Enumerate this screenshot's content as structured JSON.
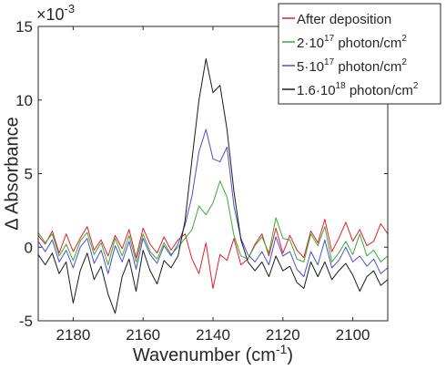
{
  "chart_data": {
    "type": "line",
    "title": "",
    "xlabel_main": "Wavenumber (cm",
    "xlabel_sup": "-1",
    "xlabel_end": ")",
    "ylabel": "Δ Absorbance",
    "exponent_base": "×10",
    "exponent_power": "-3",
    "xlim": [
      2190,
      2090
    ],
    "x_reversed": true,
    "ylim": [
      -5,
      15
    ],
    "xticks": [
      2180,
      2160,
      2140,
      2120,
      2100
    ],
    "yticks": [
      -5,
      0,
      5,
      10,
      15
    ],
    "grid": false,
    "legend_position": "top-right",
    "series": [
      {
        "name": "After deposition",
        "legend_pre": "After deposition",
        "legend_sup": "",
        "legend_post": "",
        "color": "#e0202b",
        "points": [
          [
            2190,
            0.8
          ],
          [
            2188,
            0.2
          ],
          [
            2186,
            1.1
          ],
          [
            2184,
            -0.4
          ],
          [
            2182,
            0.9
          ],
          [
            2180,
            -0.3
          ],
          [
            2178,
            0.6
          ],
          [
            2176,
            1.4
          ],
          [
            2174,
            -0.2
          ],
          [
            2172,
            0.5
          ],
          [
            2170,
            -0.6
          ],
          [
            2168,
            0.8
          ],
          [
            2166,
            -0.1
          ],
          [
            2164,
            1.2
          ],
          [
            2162,
            -0.7
          ],
          [
            2160,
            1.3
          ],
          [
            2158,
            0.2
          ],
          [
            2156,
            -0.4
          ],
          [
            2154,
            0.7
          ],
          [
            2152,
            -0.2
          ],
          [
            2150,
            0.5
          ],
          [
            2148,
            0.9
          ],
          [
            2146,
            -0.8
          ],
          [
            2144,
            -1.8
          ],
          [
            2142,
            0.3
          ],
          [
            2140,
            -2.8
          ],
          [
            2138,
            -0.5
          ],
          [
            2136,
            -0.9
          ],
          [
            2134,
            0.6
          ],
          [
            2132,
            -1.2
          ],
          [
            2130,
            -0.8
          ],
          [
            2128,
            0.2
          ],
          [
            2126,
            0.9
          ],
          [
            2124,
            -0.6
          ],
          [
            2122,
            1.3
          ],
          [
            2120,
            -0.4
          ],
          [
            2118,
            0.8
          ],
          [
            2116,
            -0.2
          ],
          [
            2114,
            -0.7
          ],
          [
            2112,
            1.1
          ],
          [
            2110,
            0.3
          ],
          [
            2108,
            1.9
          ],
          [
            2106,
            -0.3
          ],
          [
            2104,
            0.6
          ],
          [
            2102,
            1.7
          ],
          [
            2100,
            0.4
          ],
          [
            2098,
            1.2
          ],
          [
            2096,
            0.1
          ],
          [
            2094,
            0.4
          ],
          [
            2092,
            1.6
          ],
          [
            2090,
            0.9
          ]
        ]
      },
      {
        "name": "2·10^17 photon/cm^2",
        "legend_pre": "2·10",
        "legend_sup": "17",
        "legend_post": " photon/cm",
        "legend_sup2": "2",
        "color": "#3aaa35",
        "points": [
          [
            2190,
            1.0
          ],
          [
            2188,
            0.3
          ],
          [
            2186,
            0.9
          ],
          [
            2184,
            -0.6
          ],
          [
            2182,
            0.2
          ],
          [
            2180,
            -0.9
          ],
          [
            2178,
            0.4
          ],
          [
            2176,
            1.0
          ],
          [
            2174,
            -0.5
          ],
          [
            2172,
            0.3
          ],
          [
            2170,
            -1.2
          ],
          [
            2168,
            0.6
          ],
          [
            2166,
            -0.6
          ],
          [
            2164,
            0.8
          ],
          [
            2162,
            -1.0
          ],
          [
            2160,
            0.9
          ],
          [
            2158,
            -0.3
          ],
          [
            2156,
            -0.8
          ],
          [
            2154,
            0.3
          ],
          [
            2152,
            -0.5
          ],
          [
            2150,
            0.0
          ],
          [
            2148,
            0.6
          ],
          [
            2146,
            1.2
          ],
          [
            2144,
            2.8
          ],
          [
            2142,
            2.2
          ],
          [
            2140,
            3.0
          ],
          [
            2138,
            4.5
          ],
          [
            2136,
            3.4
          ],
          [
            2134,
            0.8
          ],
          [
            2132,
            -0.6
          ],
          [
            2130,
            -0.8
          ],
          [
            2128,
            0.1
          ],
          [
            2126,
            0.7
          ],
          [
            2124,
            -0.4
          ],
          [
            2122,
            2.0
          ],
          [
            2120,
            0.6
          ],
          [
            2118,
            0.5
          ],
          [
            2116,
            -0.8
          ],
          [
            2114,
            -1.0
          ],
          [
            2112,
            0.9
          ],
          [
            2110,
            0.1
          ],
          [
            2108,
            1.4
          ],
          [
            2106,
            -1.0
          ],
          [
            2104,
            -0.4
          ],
          [
            2102,
            0.4
          ],
          [
            2100,
            -0.5
          ],
          [
            2098,
            0.9
          ],
          [
            2096,
            -0.6
          ],
          [
            2094,
            -0.2
          ],
          [
            2092,
            -1.0
          ],
          [
            2090,
            -0.6
          ]
        ]
      },
      {
        "name": "5·10^17 photon/cm^2",
        "legend_pre": "5·10",
        "legend_sup": "17",
        "legend_post": " photon/cm",
        "legend_sup2": "2",
        "color": "#4a4fc7",
        "points": [
          [
            2190,
            0.4
          ],
          [
            2188,
            -0.3
          ],
          [
            2186,
            0.5
          ],
          [
            2184,
            -1.0
          ],
          [
            2182,
            -0.2
          ],
          [
            2180,
            -1.4
          ],
          [
            2178,
            0.0
          ],
          [
            2176,
            0.6
          ],
          [
            2174,
            -1.1
          ],
          [
            2172,
            -0.2
          ],
          [
            2170,
            -1.8
          ],
          [
            2168,
            0.1
          ],
          [
            2166,
            -1.0
          ],
          [
            2164,
            0.4
          ],
          [
            2162,
            -1.5
          ],
          [
            2160,
            0.6
          ],
          [
            2158,
            -0.5
          ],
          [
            2156,
            -1.1
          ],
          [
            2154,
            0.1
          ],
          [
            2152,
            -0.6
          ],
          [
            2150,
            0.2
          ],
          [
            2148,
            1.5
          ],
          [
            2146,
            3.5
          ],
          [
            2144,
            6.5
          ],
          [
            2142,
            8.0
          ],
          [
            2140,
            6.0
          ],
          [
            2138,
            5.8
          ],
          [
            2136,
            6.8
          ],
          [
            2134,
            2.8
          ],
          [
            2132,
            0.6
          ],
          [
            2130,
            -0.5
          ],
          [
            2128,
            -1.0
          ],
          [
            2126,
            -0.3
          ],
          [
            2124,
            -1.2
          ],
          [
            2122,
            0.7
          ],
          [
            2120,
            -0.6
          ],
          [
            2118,
            -0.3
          ],
          [
            2116,
            -1.5
          ],
          [
            2114,
            -2.0
          ],
          [
            2112,
            -0.3
          ],
          [
            2110,
            -1.2
          ],
          [
            2108,
            0.5
          ],
          [
            2106,
            -1.4
          ],
          [
            2104,
            -0.9
          ],
          [
            2102,
            0.0
          ],
          [
            2100,
            -1.0
          ],
          [
            2098,
            -0.6
          ],
          [
            2096,
            -1.3
          ],
          [
            2094,
            -0.8
          ],
          [
            2092,
            -1.8
          ],
          [
            2090,
            -1.4
          ]
        ]
      },
      {
        "name": "1.6·10^18 photon/cm^2",
        "legend_pre": "1.6·10",
        "legend_sup": "18",
        "legend_post": " photon/cm",
        "legend_sup2": "2",
        "color": "#1a1a1a",
        "points": [
          [
            2190,
            -0.5
          ],
          [
            2188,
            -1.2
          ],
          [
            2186,
            -0.4
          ],
          [
            2184,
            -1.8
          ],
          [
            2182,
            -1.0
          ],
          [
            2180,
            -3.8
          ],
          [
            2178,
            -1.6
          ],
          [
            2176,
            -0.4
          ],
          [
            2174,
            -2.2
          ],
          [
            2172,
            -1.3
          ],
          [
            2170,
            -3.2
          ],
          [
            2168,
            -4.5
          ],
          [
            2166,
            -2.0
          ],
          [
            2164,
            -0.8
          ],
          [
            2162,
            -3.0
          ],
          [
            2160,
            -0.2
          ],
          [
            2158,
            -1.6
          ],
          [
            2156,
            -2.5
          ],
          [
            2154,
            -0.9
          ],
          [
            2152,
            -1.4
          ],
          [
            2150,
            -0.6
          ],
          [
            2148,
            1.8
          ],
          [
            2146,
            6.0
          ],
          [
            2144,
            10.0
          ],
          [
            2142,
            12.8
          ],
          [
            2140,
            10.5
          ],
          [
            2138,
            11.0
          ],
          [
            2136,
            8.0
          ],
          [
            2134,
            3.8
          ],
          [
            2132,
            0.5
          ],
          [
            2130,
            -1.0
          ],
          [
            2128,
            -1.6
          ],
          [
            2126,
            -1.0
          ],
          [
            2124,
            -2.0
          ],
          [
            2122,
            -0.6
          ],
          [
            2120,
            -1.6
          ],
          [
            2118,
            -1.3
          ],
          [
            2116,
            -2.4
          ],
          [
            2114,
            -2.8
          ],
          [
            2112,
            -1.0
          ],
          [
            2110,
            -2.0
          ],
          [
            2108,
            -1.0
          ],
          [
            2106,
            -2.2
          ],
          [
            2104,
            -1.6
          ],
          [
            2102,
            -1.1
          ],
          [
            2100,
            -1.9
          ],
          [
            2098,
            -3.0
          ],
          [
            2096,
            -2.0
          ],
          [
            2094,
            -1.6
          ],
          [
            2092,
            -2.6
          ],
          [
            2090,
            -2.2
          ]
        ]
      }
    ]
  }
}
